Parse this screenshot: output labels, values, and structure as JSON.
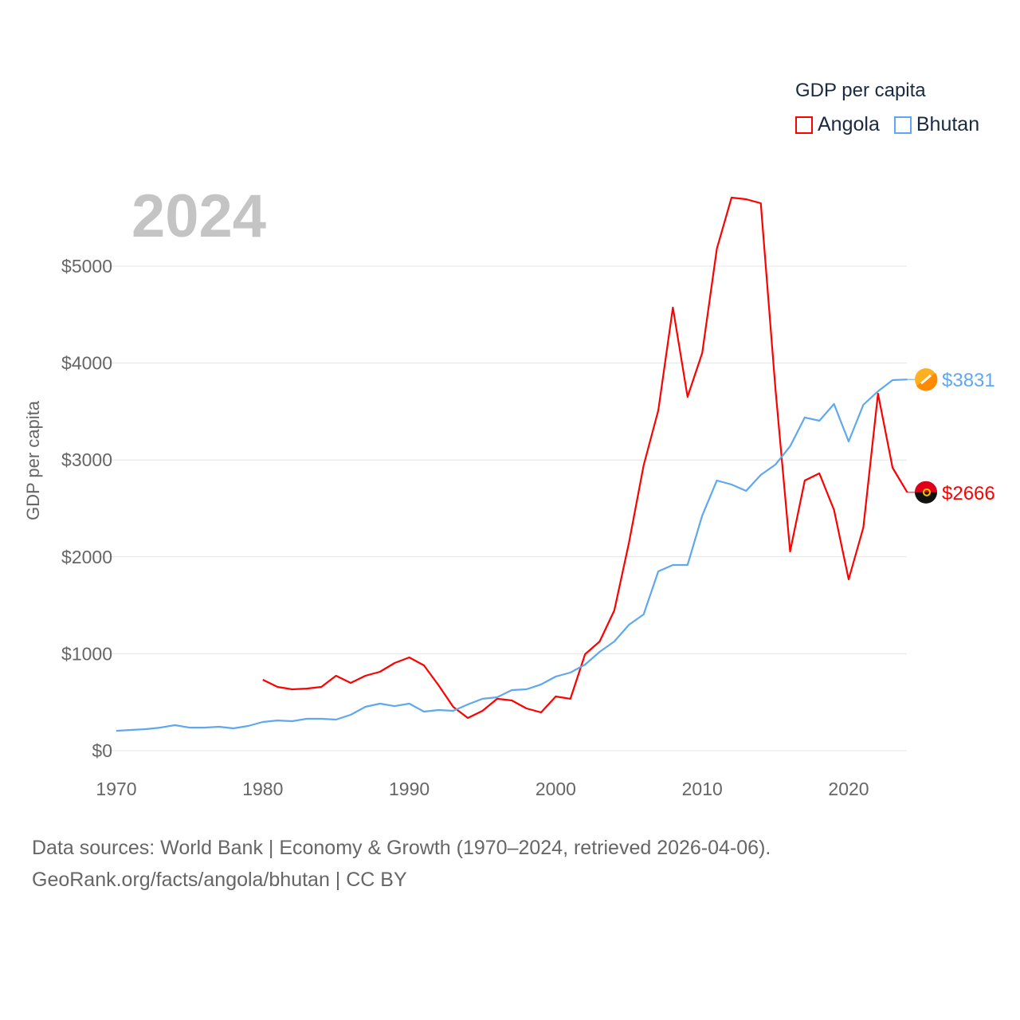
{
  "chart_data": {
    "type": "line",
    "title": "GDP per capita",
    "year_label": "2024",
    "xlabel": "",
    "ylabel": "GDP per capita",
    "xlim": [
      1970,
      2024
    ],
    "ylim": [
      0,
      5800
    ],
    "x_ticks": [
      1970,
      1980,
      1990,
      2000,
      2010,
      2020
    ],
    "y_ticks": [
      0,
      1000,
      2000,
      3000,
      4000,
      5000
    ],
    "y_tick_labels": [
      "$0",
      "$1000",
      "$2000",
      "$3000",
      "$4000",
      "$5000"
    ],
    "grid": true,
    "legend_position": "top-right",
    "series": [
      {
        "name": "Angola",
        "color": "#ff0000",
        "flag": "angola-flag-icon",
        "end_label": "$2666",
        "start_year": 1980,
        "values": [
          732,
          658,
          633,
          641,
          658,
          773,
          699,
          773,
          814,
          905,
          962,
          880,
          674,
          452,
          337,
          411,
          535,
          518,
          436,
          395,
          559,
          535,
          995,
          1127,
          1447,
          2146,
          2944,
          3512,
          4572,
          3651,
          4104,
          5181,
          5707,
          5691,
          5650,
          3734,
          2056,
          2788,
          2862,
          2484,
          1768,
          2303,
          3684,
          2919,
          2666
        ]
      },
      {
        "name": "Bhutan",
        "color": "#5fa8ee",
        "flag": "bhutan-flag-icon",
        "end_label": "$3831",
        "start_year": 1970,
        "values": [
          205,
          214,
          222,
          238,
          263,
          238,
          238,
          247,
          230,
          255,
          296,
          312,
          304,
          329,
          329,
          321,
          370,
          452,
          485,
          460,
          485,
          403,
          419,
          411,
          477,
          535,
          551,
          625,
          633,
          683,
          765,
          806,
          888,
          1020,
          1127,
          1299,
          1406,
          1850,
          1916,
          1916,
          2426,
          2788,
          2747,
          2681,
          2845,
          2952,
          3141,
          3438,
          3405,
          3577,
          3191,
          3569,
          3709,
          3824,
          3831
        ]
      }
    ]
  },
  "footer": {
    "line1": "Data sources: World Bank | Economy & Growth (1970–2024, retrieved 2026-04-06).",
    "line2": "GeoRank.org/facts/angola/bhutan | CC BY"
  }
}
